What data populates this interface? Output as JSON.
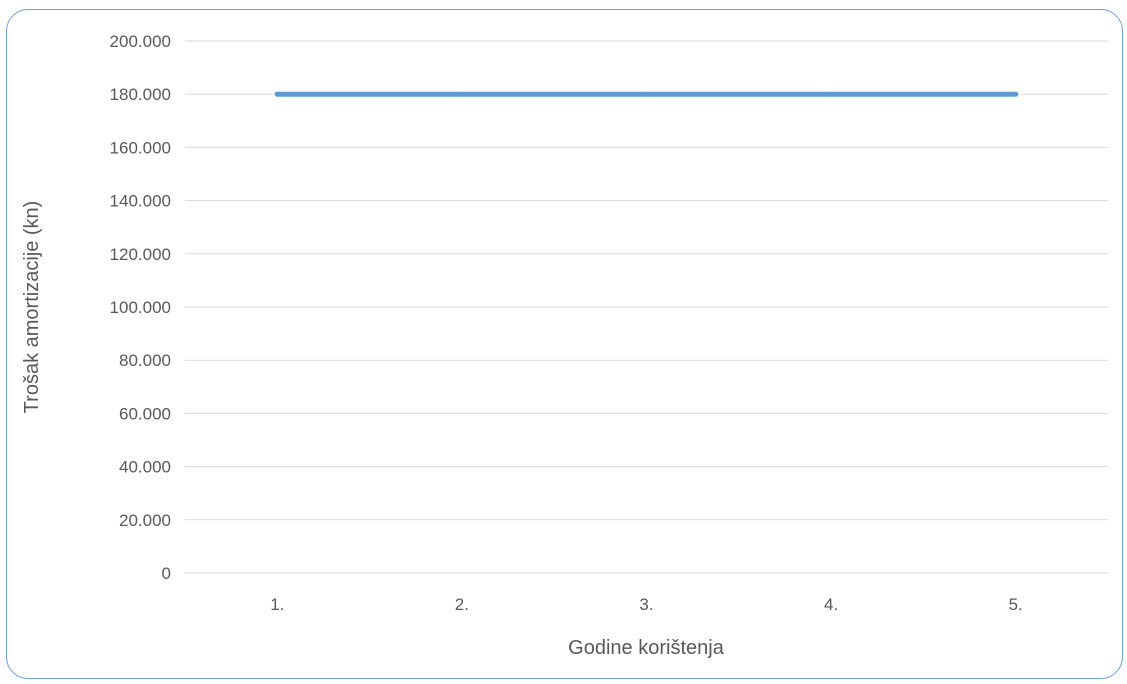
{
  "chart_data": {
    "type": "line",
    "categories": [
      "1.",
      "2.",
      "3.",
      "4.",
      "5."
    ],
    "series": [
      {
        "values": [
          180000,
          180000,
          180000,
          180000,
          180000
        ],
        "color": "#5b9bd5"
      }
    ],
    "xlabel": "Godine korištenja",
    "ylabel": "Trošak amortizacije (kn)",
    "ylim": [
      0,
      200000
    ],
    "ytick_values": [
      0,
      20000,
      40000,
      60000,
      80000,
      100000,
      120000,
      140000,
      160000,
      180000,
      200000
    ],
    "ytick_labels": [
      "0",
      "20.000",
      "40.000",
      "60.000",
      "80.000",
      "100.000",
      "120.000",
      "140.000",
      "160.000",
      "180.000",
      "200.000"
    ],
    "grid": true,
    "gridline_color": "#d9d9d9",
    "legend": "none"
  }
}
